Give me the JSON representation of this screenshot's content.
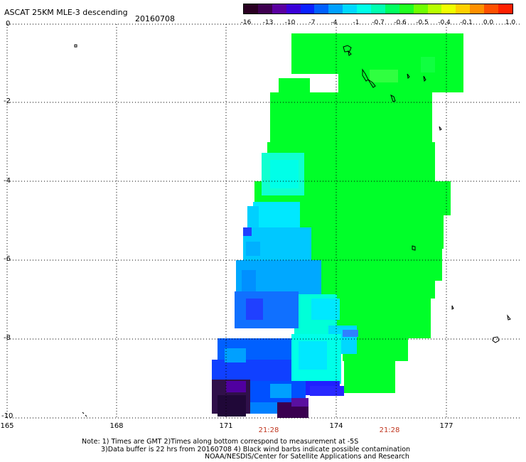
{
  "header": {
    "title": "ASCAT 25KM MLE-3 descending",
    "date": "20160708"
  },
  "colorbar": {
    "ticks": [
      "-16",
      "-13",
      "-10",
      "-7",
      "-4",
      "-1",
      "-0.7",
      "-0.6",
      "-0.5",
      "-0.4",
      "-0.1",
      "0.0",
      "1.0"
    ],
    "colors": [
      "#2a0022",
      "#3e0050",
      "#5a00a0",
      "#3a00d8",
      "#0a20ff",
      "#0060ff",
      "#00a0ff",
      "#00d8ff",
      "#00ffe8",
      "#00ffb0",
      "#00ff60",
      "#20ff20",
      "#70ff00",
      "#b8ff00",
      "#f0ff00",
      "#ffd000",
      "#ff9000",
      "#ff5000",
      "#ff2000"
    ]
  },
  "axes": {
    "y_labels": [
      "0",
      "-2",
      "-4",
      "-6",
      "-8",
      "-10"
    ],
    "x_labels": [
      "165",
      "168",
      "171",
      "174",
      "177"
    ],
    "y_range": [
      0,
      -10
    ],
    "x_range": [
      165,
      179
    ],
    "grid": true
  },
  "times": [
    "21:28",
    "21:28"
  ],
  "colors": {
    "green": "#00ff29",
    "time_label": "#c0361f"
  },
  "notes": [
    "Note: 1) Times are GMT 2)Times along bottom correspond to measurement at -5S",
    "3)Data buffer is 22 hrs from 20160708 4) Black wind barbs indicate possible contamination",
    "NOAA/NESDIS/Center for Satellite Applications and Research"
  ]
}
